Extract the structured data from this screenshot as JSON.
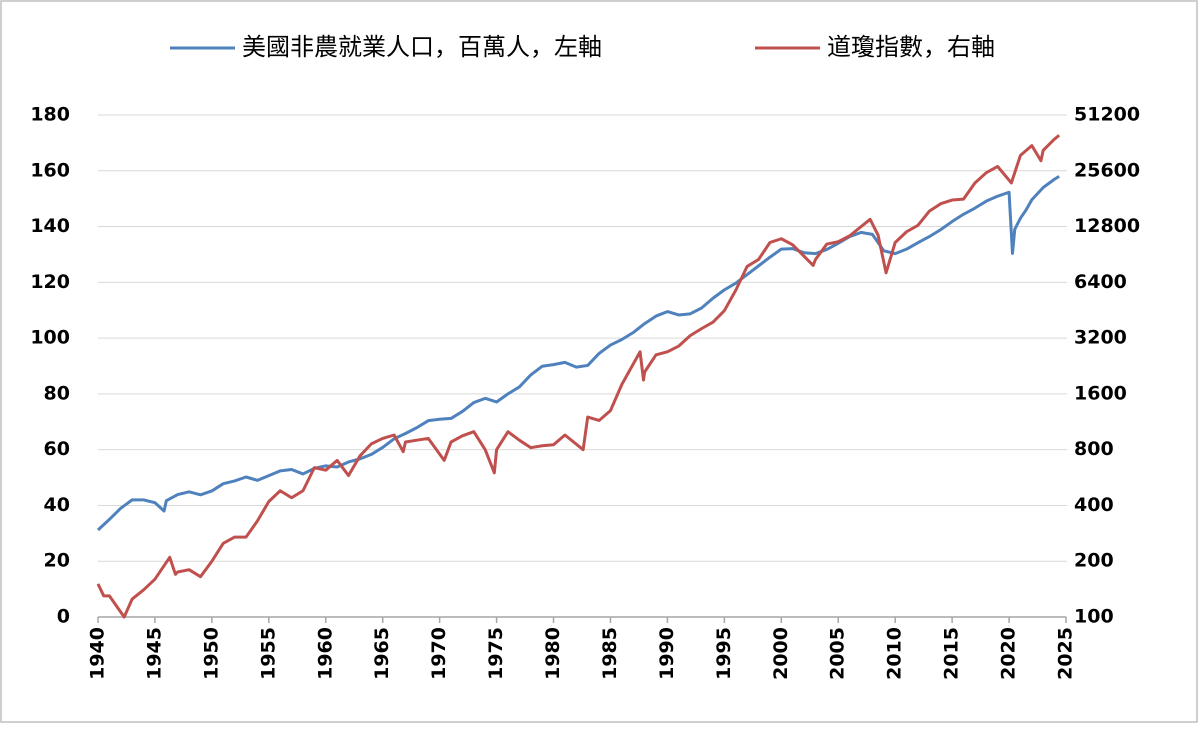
{
  "chart_data": {
    "type": "line",
    "xlim": [
      1940,
      2025
    ],
    "xticks": [
      1940,
      1945,
      1950,
      1955,
      1960,
      1965,
      1970,
      1975,
      1980,
      1985,
      1990,
      1995,
      2000,
      2005,
      2010,
      2015,
      2020,
      2025
    ],
    "ylim": [
      0,
      180
    ],
    "yticks": [
      0,
      20,
      40,
      60,
      80,
      100,
      120,
      140,
      160,
      180
    ],
    "y2lim": [
      100,
      51200
    ],
    "y2ticks": [
      100,
      200,
      400,
      800,
      1600,
      3200,
      6400,
      12800,
      25600,
      51200
    ],
    "y2log": true,
    "grid": true,
    "legend": "top",
    "series": [
      {
        "name": "美國非農就業人口，百萬人，左軸",
        "color": "#4f81bd",
        "x": [
          1940,
          1941,
          1942,
          1943,
          1944,
          1945,
          1945.8,
          1946,
          1947,
          1948,
          1949,
          1950,
          1951,
          1952,
          1953,
          1954,
          1955,
          1956,
          1957,
          1958,
          1959,
          1960,
          1961,
          1962,
          1963,
          1964,
          1965,
          1966,
          1967,
          1968,
          1969,
          1970,
          1971,
          1972,
          1973,
          1974,
          1975,
          1976,
          1977,
          1978,
          1979,
          1980,
          1981,
          1982,
          1983,
          1984,
          1985,
          1986,
          1987,
          1988,
          1989,
          1990,
          1991,
          1992,
          1993,
          1994,
          1995,
          1996,
          1997,
          1998,
          1999,
          2000,
          2001,
          2002,
          2003,
          2004,
          2005,
          2006,
          2007,
          2008,
          2009,
          2010,
          2011,
          2012,
          2013,
          2014,
          2015,
          2016,
          2017,
          2018,
          2019,
          2020,
          2020.3,
          2020.5,
          2021,
          2021.5,
          2022,
          2023,
          2024,
          2024.4
        ],
        "values": [
          31.2,
          35,
          39,
          42,
          42,
          41,
          38,
          41.7,
          43.9,
          44.9,
          43.8,
          45.2,
          47.8,
          48.8,
          50.2,
          49,
          50.7,
          52.4,
          52.9,
          51.3,
          53.3,
          54.2,
          53.8,
          55.6,
          56.7,
          58.3,
          60.8,
          63.9,
          65.8,
          67.9,
          70.4,
          70.9,
          71.2,
          73.7,
          76.9,
          78.4,
          77.1,
          80,
          82.5,
          86.8,
          89.9,
          90.5,
          91.3,
          89.6,
          90.2,
          94.5,
          97.5,
          99.5,
          102,
          105.2,
          107.9,
          109.5,
          108.3,
          108.7,
          110.8,
          114.3,
          117.3,
          119.7,
          122.8,
          125.9,
          129,
          131.9,
          132.1,
          130.6,
          130.3,
          131.8,
          134,
          136.4,
          137.9,
          137.2,
          131.3,
          130.3,
          131.9,
          134.2,
          136.4,
          138.9,
          141.8,
          144.4,
          146.6,
          149.1,
          150.9,
          152.3,
          130.4,
          139,
          143,
          146,
          149.6,
          154,
          157,
          158
        ]
      },
      {
        "name": "道瓊指數，右軸",
        "color": "#c0504d",
        "axis": "y2",
        "x": [
          1940,
          1940.5,
          1941,
          1942.3,
          1943,
          1944,
          1945,
          1946.3,
          1946.8,
          1947,
          1948,
          1949,
          1950,
          1951,
          1952,
          1953,
          1954,
          1955,
          1956,
          1957,
          1958,
          1959,
          1960,
          1961,
          1962,
          1963,
          1964,
          1965,
          1966,
          1966.8,
          1967,
          1968,
          1969,
          1970.4,
          1971,
          1972,
          1973,
          1974,
          1974.8,
          1975,
          1976,
          1977,
          1978,
          1979,
          1980,
          1981,
          1982.6,
          1983,
          1984,
          1985,
          1986,
          1987.6,
          1987.9,
          1988,
          1989,
          1990,
          1991,
          1992,
          1993,
          1994,
          1995,
          1996,
          1997,
          1998,
          1999,
          2000,
          2001,
          2002.8,
          2003,
          2004,
          2005,
          2006,
          2007.8,
          2008.5,
          2009.2,
          2010,
          2011,
          2012,
          2013,
          2014,
          2015,
          2016,
          2017,
          2018,
          2019,
          2020.2,
          2021,
          2022,
          2022.8,
          2023,
          2024,
          2024.4
        ],
        "values": [
          151,
          130,
          130,
          100,
          125,
          140,
          160,
          210,
          170,
          175,
          180,
          165,
          200,
          250,
          270,
          270,
          330,
          420,
          480,
          440,
          480,
          640,
          620,
          700,
          580,
          740,
          860,
          920,
          960,
          780,
          880,
          900,
          920,
          700,
          880,
          950,
          1000,
          800,
          600,
          800,
          1000,
          900,
          820,
          840,
          850,
          960,
          800,
          1200,
          1150,
          1300,
          1800,
          2700,
          1900,
          2100,
          2600,
          2700,
          2900,
          3300,
          3600,
          3900,
          4500,
          5800,
          7800,
          8500,
          10500,
          11000,
          10200,
          7900,
          8500,
          10300,
          10600,
          11400,
          14000,
          11500,
          7200,
          10500,
          12000,
          13000,
          15500,
          17000,
          17800,
          18000,
          22000,
          25000,
          27000,
          22000,
          31000,
          35000,
          29000,
          33000,
          38000,
          39800
        ]
      }
    ]
  }
}
